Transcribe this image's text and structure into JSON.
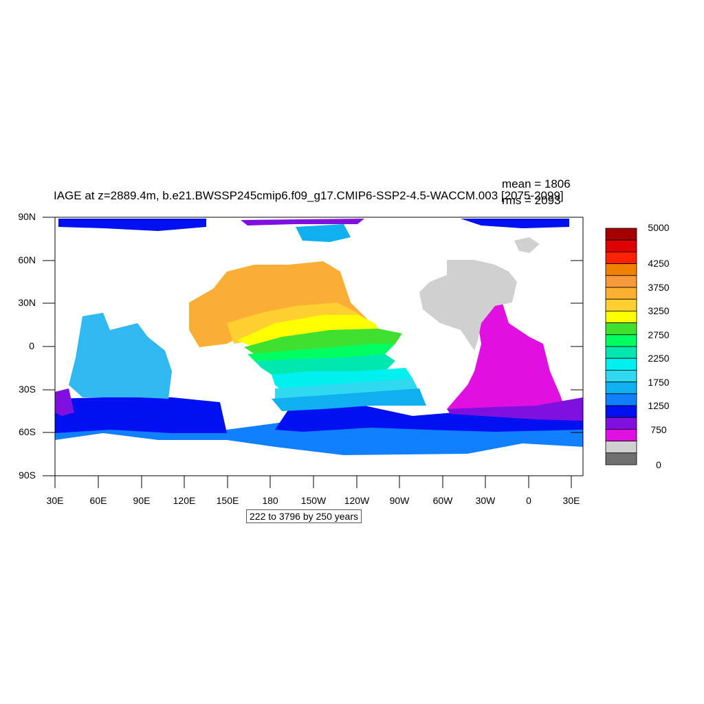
{
  "title": "IAGE at z=2889.4m, b.e21.BWSSP245cmip6.f09_g17.CMIP6-SSP2-4.5-WACCM.003 [2075-2099]",
  "stats": {
    "mean": "mean = 1806",
    "rms": "rms = 2093"
  },
  "range_text": "222 to 3796 by 250 years",
  "axes": {
    "lat_labels": [
      "90N",
      "60N",
      "30N",
      "0",
      "30S",
      "60S",
      "90S"
    ],
    "lon_labels": [
      "30E",
      "60E",
      "90E",
      "120E",
      "150E",
      "180",
      "150W",
      "120W",
      "90W",
      "60W",
      "30W",
      "0",
      "30E"
    ]
  },
  "colorbar": {
    "labels": [
      "5000",
      "4250",
      "3750",
      "3250",
      "2750",
      "2250",
      "1750",
      "1250",
      "750",
      "0"
    ],
    "colors": [
      "#a50000",
      "#e00000",
      "#ff2000",
      "#f08000",
      "#f59a3a",
      "#fbb030",
      "#ffd030",
      "#ffff00",
      "#40e030",
      "#00ff60",
      "#00e8b0",
      "#00f0f0",
      "#30d8f0",
      "#10b0f0",
      "#1080ff",
      "#0010f0",
      "#8010e0",
      "#e010e0",
      "#d0d0d0",
      "#707070"
    ]
  },
  "chart_data": {
    "type": "heatmap",
    "variable": "IAGE",
    "units": "years",
    "lat_range": [
      -90,
      90
    ],
    "lon_range": [
      30,
      390
    ],
    "contour_min": 222,
    "contour_max": 3796,
    "contour_interval": 250,
    "mean": 1806,
    "rms": 2093
  }
}
